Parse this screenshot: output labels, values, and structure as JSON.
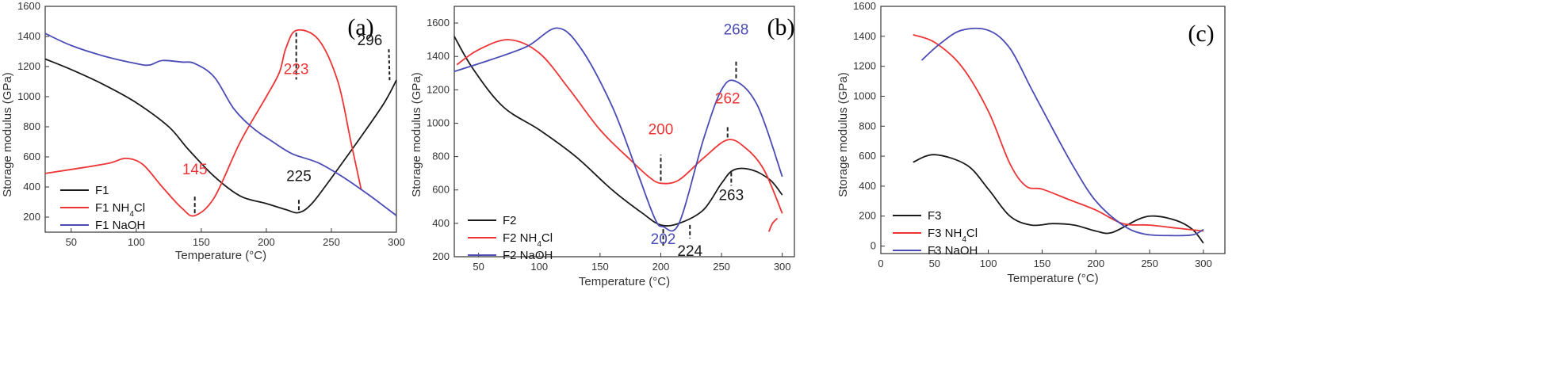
{
  "colors": {
    "black": "#1a1a1a",
    "red": "#ee3434",
    "blue": "#4a4bb5"
  },
  "chart_data": [
    {
      "type": "line",
      "panel_label": "(a)",
      "xlabel": "Temperature (°C)",
      "ylabel": "Storage modulus (GPa)",
      "xlim": [
        30,
        300
      ],
      "ylim": [
        100,
        1600
      ],
      "xticks": [
        50,
        100,
        150,
        200,
        250,
        300
      ],
      "yticks": [
        200,
        400,
        600,
        800,
        1000,
        1200,
        1400,
        1600
      ],
      "legend": "bottom-left",
      "series": [
        {
          "name": "F1",
          "color": "black",
          "points": [
            [
              30,
              1250
            ],
            [
              50,
              1180
            ],
            [
              75,
              1080
            ],
            [
              100,
              960
            ],
            [
              125,
              800
            ],
            [
              140,
              650
            ],
            [
              160,
              470
            ],
            [
              180,
              340
            ],
            [
              200,
              290
            ],
            [
              215,
              250
            ],
            [
              225,
              230
            ],
            [
              235,
              290
            ],
            [
              250,
              460
            ],
            [
              270,
              700
            ],
            [
              290,
              950
            ],
            [
              300,
              1110
            ]
          ]
        },
        {
          "name": "F1 NH4Cl",
          "legend_main": "F1 NH",
          "legend_sub": "4",
          "legend_tail": "Cl",
          "color": "red",
          "points": [
            [
              30,
              490
            ],
            [
              60,
              530
            ],
            [
              80,
              560
            ],
            [
              92,
              590
            ],
            [
              105,
              550
            ],
            [
              120,
              400
            ],
            [
              135,
              260
            ],
            [
              145,
              210
            ],
            [
              160,
              330
            ],
            [
              180,
              700
            ],
            [
              200,
              1000
            ],
            [
              210,
              1160
            ],
            [
              215,
              1320
            ],
            [
              223,
              1440
            ],
            [
              240,
              1380
            ],
            [
              255,
              1100
            ],
            [
              265,
              700
            ],
            [
              273,
              380
            ]
          ]
        },
        {
          "name": "F1 NaOH",
          "color": "blue",
          "points": [
            [
              30,
              1420
            ],
            [
              50,
              1340
            ],
            [
              75,
              1270
            ],
            [
              100,
              1220
            ],
            [
              110,
              1210
            ],
            [
              120,
              1240
            ],
            [
              135,
              1230
            ],
            [
              145,
              1220
            ],
            [
              160,
              1130
            ],
            [
              175,
              920
            ],
            [
              190,
              790
            ],
            [
              205,
              700
            ],
            [
              220,
              620
            ],
            [
              240,
              560
            ],
            [
              260,
              460
            ],
            [
              280,
              340
            ],
            [
              300,
              210
            ]
          ]
        }
      ],
      "annotations": [
        {
          "text": "145",
          "color": "red",
          "x": 145,
          "y": 210
        },
        {
          "text": "223",
          "color": "red",
          "x": 223,
          "y": 1440
        },
        {
          "text": "225",
          "color": "black",
          "x": 225,
          "y": 230
        },
        {
          "text": "296",
          "color": "black",
          "x": 296,
          "y": 1120
        }
      ]
    },
    {
      "type": "line",
      "panel_label": "(b)",
      "xlabel": "Temperature (°C)",
      "ylabel": "Storage modulus (GPa)",
      "xlim": [
        30,
        310
      ],
      "ylim": [
        200,
        1700
      ],
      "xticks": [
        50,
        100,
        150,
        200,
        250,
        300
      ],
      "yticks": [
        200,
        400,
        600,
        800,
        1000,
        1200,
        1400,
        1600
      ],
      "legend": "bottom-left",
      "series": [
        {
          "name": "F2",
          "color": "black",
          "points": [
            [
              30,
              1520
            ],
            [
              45,
              1330
            ],
            [
              70,
              1100
            ],
            [
              100,
              960
            ],
            [
              130,
              800
            ],
            [
              160,
              600
            ],
            [
              185,
              460
            ],
            [
              200,
              390
            ],
            [
              215,
              400
            ],
            [
              235,
              480
            ],
            [
              250,
              640
            ],
            [
              260,
              720
            ],
            [
              275,
              720
            ],
            [
              290,
              660
            ],
            [
              300,
              570
            ]
          ]
        },
        {
          "name": "F2 NH4Cl",
          "legend_main": "F2 NH",
          "legend_sub": "4",
          "legend_tail": "Cl",
          "color": "red",
          "points": [
            [
              32,
              1350
            ],
            [
              50,
              1440
            ],
            [
              75,
              1500
            ],
            [
              100,
              1420
            ],
            [
              125,
              1200
            ],
            [
              150,
              960
            ],
            [
              175,
              780
            ],
            [
              190,
              680
            ],
            [
              200,
              640
            ],
            [
              215,
              660
            ],
            [
              235,
              790
            ],
            [
              255,
              900
            ],
            [
              270,
              850
            ],
            [
              285,
              720
            ],
            [
              300,
              460
            ]
          ]
        },
        {
          "name": "F2 NaOH",
          "color": "blue",
          "points": [
            [
              30,
              1310
            ],
            [
              60,
              1380
            ],
            [
              90,
              1460
            ],
            [
              115,
              1570
            ],
            [
              135,
              1440
            ],
            [
              160,
              1100
            ],
            [
              180,
              720
            ],
            [
              195,
              430
            ],
            [
              202,
              380
            ],
            [
              215,
              400
            ],
            [
              235,
              900
            ],
            [
              250,
              1200
            ],
            [
              262,
              1250
            ],
            [
              280,
              1100
            ],
            [
              300,
              680
            ]
          ]
        }
      ],
      "extra_paths": [
        {
          "color": "red",
          "points": [
            [
              289,
              350
            ],
            [
              292,
              400
            ],
            [
              296,
              430
            ]
          ]
        }
      ],
      "annotations": [
        {
          "text": "200",
          "color": "red",
          "x": 200,
          "y": 640
        },
        {
          "text": "202",
          "color": "blue",
          "x": 202,
          "y": 380
        },
        {
          "text": "224",
          "color": "black",
          "x": 224,
          "y": 405
        },
        {
          "text": "262",
          "color": "red",
          "x": 255,
          "y": 900
        },
        {
          "text": "268",
          "color": "blue",
          "x": 262,
          "y": 1255
        },
        {
          "text": "263",
          "color": "black",
          "x": 258,
          "y": 720
        }
      ]
    },
    {
      "type": "line",
      "panel_label": "(c)",
      "xlabel": "Temperature (°C)",
      "ylabel": "Storage modulus (GPa)",
      "xlim": [
        0,
        320
      ],
      "ylim": [
        -50,
        1600
      ],
      "xticks": [
        0,
        50,
        100,
        150,
        200,
        250,
        300
      ],
      "yticks": [
        0,
        200,
        400,
        600,
        800,
        1000,
        1200,
        1400,
        1600
      ],
      "legend": "bottom-left",
      "series": [
        {
          "name": "F3",
          "color": "black",
          "points": [
            [
              30,
              560
            ],
            [
              50,
              610
            ],
            [
              80,
              540
            ],
            [
              100,
              380
            ],
            [
              120,
              200
            ],
            [
              140,
              140
            ],
            [
              160,
              150
            ],
            [
              180,
              140
            ],
            [
              200,
              100
            ],
            [
              215,
              90
            ],
            [
              240,
              180
            ],
            [
              255,
              200
            ],
            [
              275,
              170
            ],
            [
              290,
              110
            ],
            [
              300,
              20
            ]
          ]
        },
        {
          "name": "F3 NH4Cl",
          "legend_main": "F3 NH",
          "legend_sub": "4",
          "legend_tail": "Cl",
          "color": "red",
          "points": [
            [
              30,
              1410
            ],
            [
              50,
              1360
            ],
            [
              75,
              1200
            ],
            [
              100,
              900
            ],
            [
              120,
              550
            ],
            [
              135,
              400
            ],
            [
              150,
              380
            ],
            [
              175,
              310
            ],
            [
              200,
              240
            ],
            [
              225,
              150
            ],
            [
              250,
              140
            ],
            [
              275,
              120
            ],
            [
              300,
              100
            ]
          ]
        },
        {
          "name": "F3 NaOH",
          "color": "blue",
          "points": [
            [
              38,
              1240
            ],
            [
              55,
              1350
            ],
            [
              75,
              1440
            ],
            [
              100,
              1440
            ],
            [
              120,
              1320
            ],
            [
              140,
              1050
            ],
            [
              160,
              780
            ],
            [
              180,
              520
            ],
            [
              200,
              300
            ],
            [
              225,
              140
            ],
            [
              245,
              80
            ],
            [
              270,
              70
            ],
            [
              290,
              75
            ],
            [
              300,
              110
            ]
          ]
        }
      ]
    }
  ]
}
